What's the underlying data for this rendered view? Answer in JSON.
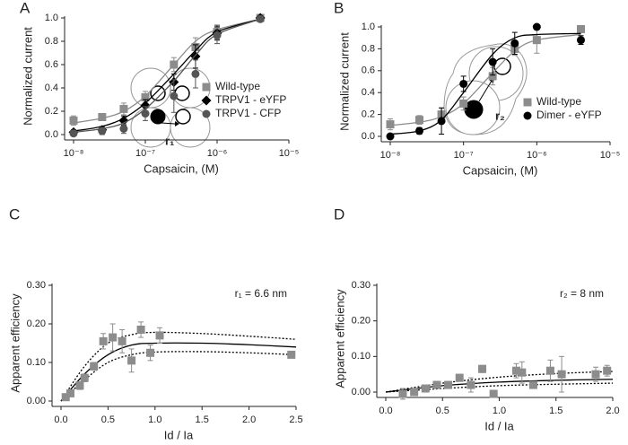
{
  "chart_data": [
    {
      "type": "scatter",
      "panel_label": "A",
      "xscale": "log",
      "xlabel": "Capsaicin, (M)",
      "ylabel": "Normalized current",
      "x": [
        1e-08,
        2.5e-08,
        5e-08,
        1e-07,
        2.5e-07,
        5e-07,
        1e-06,
        4e-06
      ],
      "xlim": [
        1e-08,
        1e-05
      ],
      "xticks": [
        {
          "value": 1e-08,
          "label": "10⁻⁸"
        },
        {
          "value": 1e-07,
          "label": "10⁻⁷"
        },
        {
          "value": 1e-06,
          "label": "10⁻⁶"
        },
        {
          "value": 1e-05,
          "label": "10⁻⁵"
        }
      ],
      "ylim": [
        0,
        1
      ],
      "yticks": [
        {
          "value": 0,
          "label": "0.0"
        },
        0.2,
        0.4,
        0.6,
        0.8,
        {
          "value": 1,
          "label": "1.0"
        }
      ],
      "legend": "lower right",
      "series": [
        {
          "name": "Wild-type",
          "color": "#8c8c8c",
          "marker": "square",
          "values": [
            0.12,
            0.15,
            0.22,
            0.32,
            0.6,
            0.75,
            0.88,
            1.0
          ],
          "errors": [
            0.04,
            0.03,
            0.05,
            0.05,
            0.06,
            0.08,
            0.06,
            0.01
          ],
          "fit": [
            0.1,
            0.14,
            0.2,
            0.33,
            0.6,
            0.8,
            0.9,
            0.99
          ]
        },
        {
          "name": "TRPV1 - eYFP",
          "color": "#000000",
          "marker": "diamond",
          "values": [
            0.02,
            0.04,
            0.12,
            0.25,
            0.45,
            0.67,
            0.87,
            1.0
          ],
          "errors": [
            0.02,
            0.03,
            0.04,
            0.05,
            0.07,
            0.1,
            0.06,
            0.01
          ],
          "fit": [
            0.03,
            0.07,
            0.14,
            0.27,
            0.52,
            0.72,
            0.88,
            0.99
          ]
        },
        {
          "name": "TRPV1 - CFP",
          "color": "#555555",
          "marker": "circle",
          "values": [
            0.01,
            0.03,
            0.05,
            0.18,
            0.33,
            0.52,
            0.85,
            0.99
          ],
          "errors": [
            0.02,
            0.03,
            0.04,
            0.06,
            0.14,
            0.12,
            0.07,
            0.01
          ],
          "fit": [
            0.02,
            0.05,
            0.1,
            0.22,
            0.46,
            0.68,
            0.86,
            0.99
          ]
        }
      ]
    },
    {
      "type": "scatter",
      "panel_label": "B",
      "xscale": "log",
      "xlabel": "Capsaicin, (M)",
      "ylabel": "Normalized current",
      "x": [
        1e-08,
        2.5e-08,
        5e-08,
        1e-07,
        2.5e-07,
        5e-07,
        1e-06,
        4e-06
      ],
      "xlim": [
        1e-08,
        1e-05
      ],
      "xticks": [
        {
          "value": 1e-08,
          "label": "10⁻⁸"
        },
        {
          "value": 1e-07,
          "label": "10⁻⁷"
        },
        {
          "value": 1e-06,
          "label": "10⁻⁶"
        },
        {
          "value": 1e-05,
          "label": "10⁻⁵"
        }
      ],
      "ylim": [
        0,
        1
      ],
      "yticks": [
        {
          "value": 0,
          "label": "0.0"
        },
        0.2,
        0.4,
        0.6,
        0.8,
        {
          "value": 1,
          "label": "1.0"
        }
      ],
      "legend": "lower right",
      "series": [
        {
          "name": "Wild-type",
          "color": "#8c8c8c",
          "marker": "square",
          "values": [
            0.11,
            0.15,
            0.2,
            0.3,
            0.55,
            0.8,
            0.88,
            0.98
          ],
          "errors": [
            0.05,
            0.04,
            0.06,
            0.06,
            0.08,
            0.06,
            0.12,
            0.01
          ],
          "fit": [
            0.1,
            0.13,
            0.18,
            0.3,
            0.58,
            0.78,
            0.88,
            0.93
          ]
        },
        {
          "name": "Dimer - eYFP",
          "color": "#000000",
          "marker": "circle",
          "values": [
            0.0,
            0.05,
            0.14,
            0.48,
            0.68,
            0.85,
            1.0,
            0.88
          ],
          "errors": [
            0.02,
            0.03,
            0.12,
            0.07,
            0.12,
            0.1,
            0.01,
            0.04
          ],
          "fit": [
            0.02,
            0.05,
            0.15,
            0.4,
            0.75,
            0.9,
            0.93,
            0.94
          ]
        }
      ]
    },
    {
      "type": "scatter",
      "panel_label": "C",
      "xlabel": "Id / Ia",
      "ylabel": "Apparent efficiency",
      "annotation": "r₁ = 6.6 nm",
      "diagram_label": "r₁",
      "xlim": [
        0,
        2.5
      ],
      "xticks": [
        {
          "value": 0,
          "label": "0.0"
        },
        0.5,
        {
          "value": 1,
          "label": "1.0"
        },
        1.5,
        {
          "value": 2,
          "label": "2.0"
        },
        2.5
      ],
      "ylim": [
        0,
        0.3
      ],
      "yticks": [
        {
          "value": 0,
          "label": "0.00"
        },
        {
          "value": 0.1,
          "label": "0.10"
        },
        {
          "value": 0.2,
          "label": "0.20"
        },
        {
          "value": 0.3,
          "label": "0.30"
        }
      ],
      "series": [
        {
          "color": "#8c8c8c",
          "marker": "square",
          "x": [
            0.05,
            0.1,
            0.2,
            0.25,
            0.35,
            0.45,
            0.55,
            0.65,
            0.75,
            0.85,
            0.95,
            1.05,
            2.45
          ],
          "values": [
            0.01,
            0.02,
            0.04,
            0.06,
            0.09,
            0.155,
            0.165,
            0.155,
            0.105,
            0.185,
            0.125,
            0.17,
            0.12
          ],
          "errors": [
            0.005,
            0.005,
            0.01,
            0.01,
            0.01,
            0.02,
            0.035,
            0.03,
            0.03,
            0.02,
            0.02,
            0.02,
            0.005
          ]
        }
      ],
      "fits": [
        {
          "style": "solid",
          "x": [
            0,
            0.25,
            0.5,
            0.75,
            1,
            1.5,
            2,
            2.5
          ],
          "values": [
            0,
            0.07,
            0.12,
            0.145,
            0.15,
            0.15,
            0.146,
            0.14
          ]
        },
        {
          "style": "dotted",
          "x": [
            0,
            0.25,
            0.5,
            0.75,
            1,
            1.5,
            2,
            2.5
          ],
          "values": [
            0,
            0.09,
            0.15,
            0.172,
            0.178,
            0.175,
            0.168,
            0.16
          ]
        },
        {
          "style": "dotted",
          "x": [
            0,
            0.25,
            0.5,
            0.75,
            1,
            1.5,
            2,
            2.5
          ],
          "values": [
            0,
            0.055,
            0.1,
            0.12,
            0.127,
            0.128,
            0.125,
            0.12
          ]
        }
      ]
    },
    {
      "type": "scatter",
      "panel_label": "D",
      "xlabel": "Id / Ia",
      "ylabel": "Apparent efficiency",
      "annotation": "r₂ = 8 nm",
      "diagram_label": "r₂",
      "xlim": [
        0,
        2
      ],
      "xticks": [
        {
          "value": 0,
          "label": "0.0"
        },
        0.5,
        {
          "value": 1,
          "label": "1.0"
        },
        1.5,
        {
          "value": 2,
          "label": "2.0"
        }
      ],
      "ylim": [
        0,
        0.3
      ],
      "yticks": [
        {
          "value": 0,
          "label": "0.00"
        },
        {
          "value": 0.1,
          "label": "0.10"
        },
        {
          "value": 0.2,
          "label": "0.20"
        },
        {
          "value": 0.3,
          "label": "0.30"
        }
      ],
      "series": [
        {
          "color": "#8c8c8c",
          "marker": "square",
          "x": [
            0.15,
            0.25,
            0.35,
            0.45,
            0.55,
            0.65,
            0.75,
            0.85,
            0.95,
            1.15,
            1.2,
            1.3,
            1.45,
            1.55,
            1.85,
            1.95
          ],
          "values": [
            -0.005,
            0.0,
            0.01,
            0.02,
            0.02,
            0.04,
            0.02,
            0.065,
            -0.005,
            0.06,
            0.055,
            0.02,
            0.06,
            0.05,
            0.05,
            0.06
          ],
          "errors": [
            0.015,
            0.01,
            0.01,
            0.01,
            0.01,
            0.01,
            0.02,
            0.01,
            0.003,
            0.02,
            0.03,
            0.005,
            0.03,
            0.05,
            0.02,
            0.015
          ]
        }
      ],
      "fits": [
        {
          "style": "solid",
          "x": [
            0,
            0.5,
            1,
            1.5,
            2
          ],
          "values": [
            0,
            0.018,
            0.028,
            0.033,
            0.036
          ]
        },
        {
          "style": "dotted",
          "x": [
            0,
            0.5,
            1,
            1.5,
            2
          ],
          "values": [
            0,
            0.025,
            0.042,
            0.052,
            0.058
          ]
        },
        {
          "style": "dotted",
          "x": [
            0,
            0.5,
            1,
            1.5,
            2
          ],
          "values": [
            0,
            0.01,
            0.018,
            0.022,
            0.025
          ]
        }
      ]
    }
  ]
}
